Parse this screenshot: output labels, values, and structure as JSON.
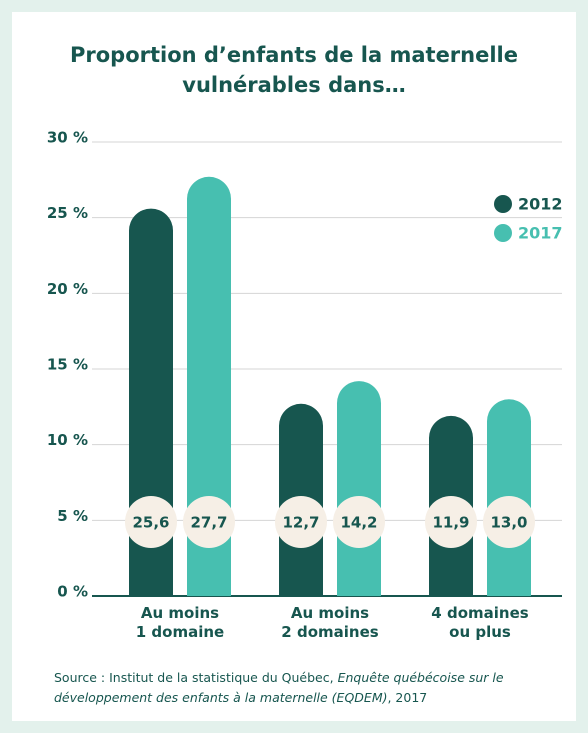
{
  "chart_data": {
    "type": "bar",
    "title": "Proportion d’enfants de la maternelle\nvulnérables dans…",
    "categories": [
      "Au moins\n1 domaine",
      "Au moins\n2 domaines",
      "4 domaines\nou plus"
    ],
    "series": [
      {
        "name": "2012",
        "color": "#17564f",
        "values": [
          25.6,
          12.7,
          11.9
        ],
        "value_labels": [
          "25,6",
          "12,7",
          "11,9"
        ]
      },
      {
        "name": "2017",
        "color": "#47bfb0",
        "values": [
          27.7,
          14.2,
          13.0
        ],
        "value_labels": [
          "27,7",
          "14,2",
          "13,0"
        ]
      }
    ],
    "ylim": [
      0,
      30
    ],
    "yticks": [
      {
        "value": 0,
        "label": "0 %"
      },
      {
        "value": 5,
        "label": "5 %"
      },
      {
        "value": 10,
        "label": "10 %"
      },
      {
        "value": 15,
        "label": "15 %"
      },
      {
        "value": 20,
        "label": "20 %"
      },
      {
        "value": 25,
        "label": "25 %"
      },
      {
        "value": 30,
        "label": "30 %"
      }
    ],
    "grid": true,
    "legend": "upper right",
    "source": {
      "text": "Source : Institut de la statistique du Québec, ",
      "publication": "Enquête québécoise sur le développement des enfants à la maternelle (EQDEM)",
      "suffix": ", 2017"
    }
  }
}
